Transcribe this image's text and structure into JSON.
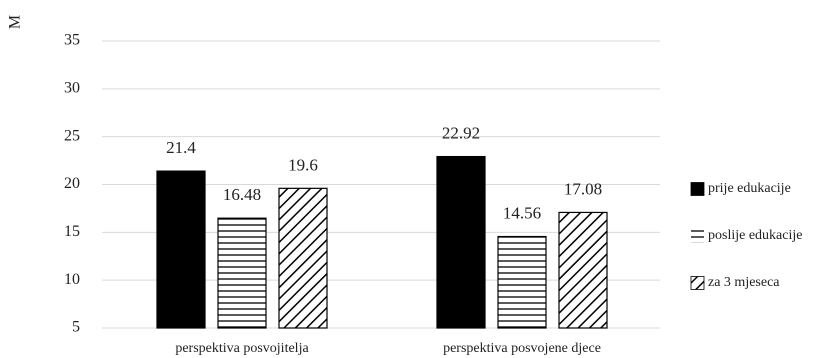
{
  "chart_data": {
    "type": "bar",
    "ylabel": "M",
    "ylim": [
      5,
      35
    ],
    "yticks": [
      5,
      10,
      15,
      20,
      25,
      30,
      35
    ],
    "grid": true,
    "legend_position": "right",
    "categories": [
      "perspektiva posvojitelja",
      "perspektiva posvojene djece"
    ],
    "series": [
      {
        "name": "prije edukacije",
        "values": [
          21.4,
          22.92
        ],
        "labels": [
          "21.4",
          "22.92"
        ],
        "pattern": "solid"
      },
      {
        "name": "poslije edukacije",
        "values": [
          16.48,
          14.56
        ],
        "labels": [
          "16.48",
          "14.56"
        ],
        "pattern": "horizontal-lines"
      },
      {
        "name": "za 3 mjeseca",
        "values": [
          19.6,
          17.08
        ],
        "labels": [
          "19.6",
          "17.08"
        ],
        "pattern": "diagonal-lines"
      }
    ],
    "colors": {
      "fill": "#000000",
      "background": "#ffffff",
      "grid": "#d9d9d9"
    }
  }
}
